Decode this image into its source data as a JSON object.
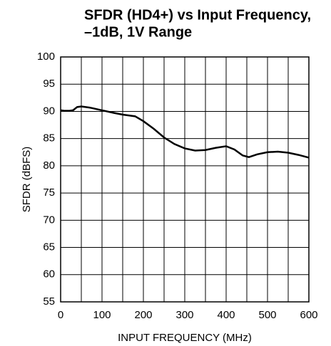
{
  "chart_data": {
    "type": "line",
    "title": [
      "SFDR (HD4+) vs Input Frequency,",
      "–1dB, 1V Range"
    ],
    "xlabel": "INPUT FREQUENCY (MHz)",
    "ylabel": "SFDR (dBFS)",
    "xlim": [
      0,
      600
    ],
    "xticks": [
      0,
      100,
      200,
      300,
      400,
      500,
      600
    ],
    "x_minor_ticks": [
      50,
      150,
      250,
      350,
      450,
      550
    ],
    "ylim": [
      55,
      100
    ],
    "yticks": [
      55,
      60,
      65,
      70,
      75,
      80,
      85,
      90,
      95,
      100
    ],
    "grid": true,
    "series": [
      {
        "color": "#000000",
        "x": [
          0,
          10,
          20,
          30,
          40,
          50,
          70,
          100,
          130,
          150,
          180,
          200,
          225,
          250,
          275,
          300,
          325,
          350,
          375,
          400,
          420,
          440,
          455,
          475,
          500,
          525,
          550,
          575,
          600
        ],
        "values": [
          90.2,
          90.1,
          90.1,
          90.2,
          90.8,
          90.9,
          90.7,
          90.2,
          89.7,
          89.4,
          89.1,
          88.2,
          86.8,
          85.2,
          84.0,
          83.2,
          82.8,
          82.9,
          83.3,
          83.6,
          83.0,
          81.9,
          81.6,
          82.1,
          82.5,
          82.6,
          82.4,
          82.0,
          81.5
        ]
      }
    ]
  }
}
